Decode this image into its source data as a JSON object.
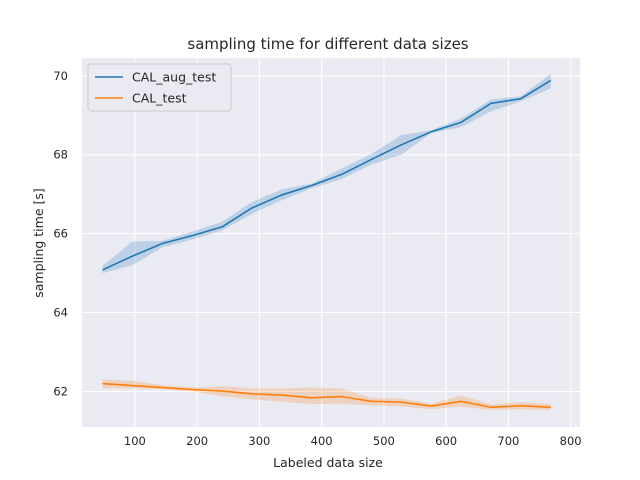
{
  "chart_data": {
    "type": "line",
    "title": "sampling time for different data sizes",
    "xlabel": "Labeled data size",
    "ylabel": "sampling time [s]",
    "xlim": [
      15,
      815
    ],
    "ylim": [
      61.1,
      70.45
    ],
    "xticks": [
      100,
      200,
      300,
      400,
      500,
      600,
      700,
      800
    ],
    "yticks": [
      62,
      64,
      66,
      68,
      70
    ],
    "grid": true,
    "legend_position": "upper-left",
    "series": [
      {
        "name": "CAL_aug_test",
        "color": "#1f77b4",
        "x": [
          48,
          96,
          144,
          192,
          240,
          288,
          336,
          384,
          432,
          480,
          528,
          576,
          624,
          672,
          720,
          768
        ],
        "y": [
          65.08,
          65.43,
          65.75,
          65.95,
          66.17,
          66.65,
          66.98,
          67.22,
          67.5,
          67.88,
          68.25,
          68.58,
          68.82,
          69.3,
          69.42,
          69.88
        ],
        "lower": [
          65.0,
          65.2,
          65.65,
          65.85,
          66.08,
          66.5,
          66.85,
          67.15,
          67.38,
          67.75,
          68.0,
          68.55,
          68.7,
          69.1,
          69.35,
          69.68
        ],
        "upper": [
          65.18,
          65.8,
          65.82,
          66.05,
          66.3,
          66.8,
          67.12,
          67.27,
          67.65,
          68.02,
          68.5,
          68.62,
          68.92,
          69.4,
          69.48,
          70.05
        ]
      },
      {
        "name": "CAL_test",
        "color": "#ff7f0e",
        "x": [
          48,
          96,
          144,
          192,
          240,
          288,
          336,
          384,
          432,
          480,
          528,
          576,
          624,
          672,
          720,
          768
        ],
        "y": [
          62.2,
          62.15,
          62.1,
          62.05,
          62.01,
          61.94,
          61.91,
          61.84,
          61.87,
          61.75,
          61.73,
          61.63,
          61.75,
          61.6,
          61.64,
          61.6
        ],
        "lower": [
          62.08,
          62.08,
          62.06,
          62.0,
          61.88,
          61.8,
          61.74,
          61.68,
          61.69,
          61.65,
          61.62,
          61.55,
          61.62,
          61.53,
          61.55,
          61.52
        ],
        "upper": [
          62.3,
          62.27,
          62.16,
          62.1,
          62.14,
          62.08,
          62.08,
          62.1,
          62.08,
          61.84,
          61.82,
          61.69,
          61.9,
          61.67,
          61.73,
          61.68
        ]
      }
    ]
  }
}
